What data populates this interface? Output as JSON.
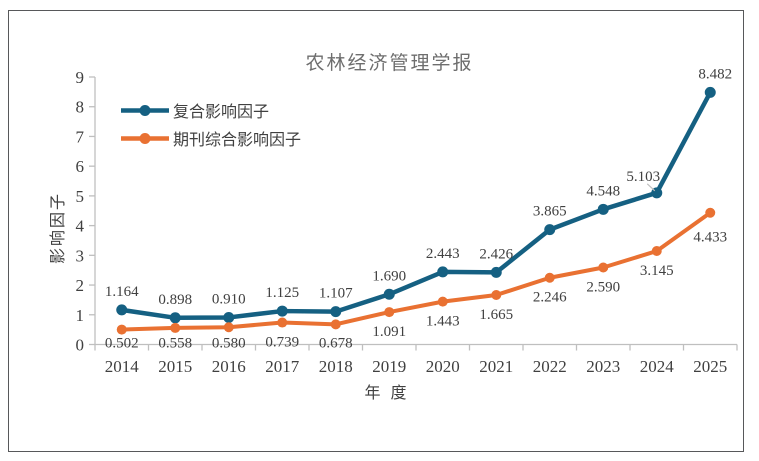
{
  "chart_data": {
    "type": "line",
    "title": "农林经济管理学报",
    "xlabel": "年 度",
    "ylabel": "影响因子",
    "categories": [
      "2014",
      "2015",
      "2016",
      "2017",
      "2018",
      "2019",
      "2020",
      "2021",
      "2022",
      "2023",
      "2024",
      "2025"
    ],
    "series": [
      {
        "name": "复合影响因子",
        "color": "#156082",
        "marker": "circle",
        "label_position": "above",
        "values": [
          1.164,
          0.898,
          0.91,
          1.125,
          1.107,
          1.69,
          2.443,
          2.426,
          3.865,
          4.548,
          5.103,
          8.482
        ]
      },
      {
        "name": "期刊综合影响因子",
        "color": "#E97132",
        "marker": "circle",
        "label_position": "below",
        "values": [
          0.502,
          0.558,
          0.58,
          0.739,
          0.678,
          1.091,
          1.443,
          1.665,
          2.246,
          2.59,
          3.145,
          4.433
        ]
      }
    ],
    "ylim": [
      0,
      9
    ],
    "ytick_step": 1,
    "grid": false,
    "legend_position": "top-left-inside",
    "label_decimals": 3,
    "leader_line_point": {
      "series": 0,
      "category": "2024"
    }
  },
  "styles": {
    "axis_color": "#BFBFBF",
    "tick_label_color": "#404040",
    "data_label_color": "#404040",
    "title_color": "#6E6E6E",
    "legend_text_color": "#404040",
    "frame_border_color": "#57585A",
    "background": "#FFFFFF"
  }
}
